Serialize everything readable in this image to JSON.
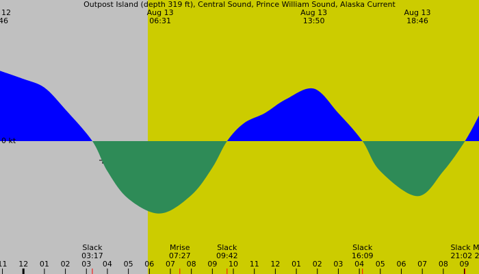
{
  "chart_data": {
    "type": "current",
    "title": "Outpost Island (depth 319 ft), Central Sound, Prince William Sound, Alaska Current",
    "xlim": [
      -1.115,
      21.7
    ],
    "ylim": [
      -2.5,
      2.5
    ],
    "yticks": [
      {
        "value": 0,
        "label": "0 kt"
      }
    ],
    "xticks": [
      {
        "value": -1,
        "label": "11"
      },
      {
        "value": 0,
        "label": "12"
      },
      {
        "value": 1,
        "label": "01"
      },
      {
        "value": 2,
        "label": "02"
      },
      {
        "value": 3,
        "label": "03"
      },
      {
        "value": 4,
        "label": "04"
      },
      {
        "value": 5,
        "label": "05"
      },
      {
        "value": 6,
        "label": "06"
      },
      {
        "value": 7,
        "label": "07"
      },
      {
        "value": 8,
        "label": "08"
      },
      {
        "value": 9,
        "label": "09"
      },
      {
        "value": 10,
        "label": "10"
      },
      {
        "value": 11,
        "label": "11"
      },
      {
        "value": 12,
        "label": "12"
      },
      {
        "value": 13,
        "label": "01"
      },
      {
        "value": 14,
        "label": "02"
      },
      {
        "value": 15,
        "label": "03"
      },
      {
        "value": 16,
        "label": "04"
      },
      {
        "value": 17,
        "label": "05"
      },
      {
        "value": 18,
        "label": "06"
      },
      {
        "value": 19,
        "label": "07"
      },
      {
        "value": 20,
        "label": "08"
      },
      {
        "value": 21,
        "label": "09"
      }
    ],
    "flood_color": "#0000ff",
    "ebb_color": "#2e8b57",
    "x": [
      -1.115,
      0,
      1,
      2,
      3.283,
      4,
      5,
      6.517,
      8,
      9,
      9.7,
      10.5,
      11.5,
      12.5,
      13.833,
      15,
      16.15,
      17,
      18.767,
      20,
      21.033,
      21.7
    ],
    "values": [
      1.38,
      1.22,
      1.05,
      0.62,
      0,
      -0.59,
      -1.13,
      -1.42,
      -1.06,
      -0.52,
      0,
      0.35,
      0.55,
      0.82,
      1.03,
      0.55,
      0,
      -0.59,
      -1.08,
      -0.59,
      0,
      0.5
    ],
    "peaks": [
      {
        "date": "Aug 13",
        "time": "06:31"
      },
      {
        "date": "Aug 13",
        "time": "13:50"
      },
      {
        "date": "Aug 13",
        "time": "18:46"
      }
    ],
    "clipped_peak": [
      "12",
      "46"
    ],
    "events": [
      {
        "name": "Slack",
        "time": "03:17"
      },
      {
        "name": "Mrise",
        "time": "07:27"
      },
      {
        "name": "Slack",
        "time": "09:42"
      },
      {
        "name": "Slack",
        "time": "16:09"
      },
      {
        "name": "Slack M",
        "time": "21:02 2"
      }
    ]
  }
}
